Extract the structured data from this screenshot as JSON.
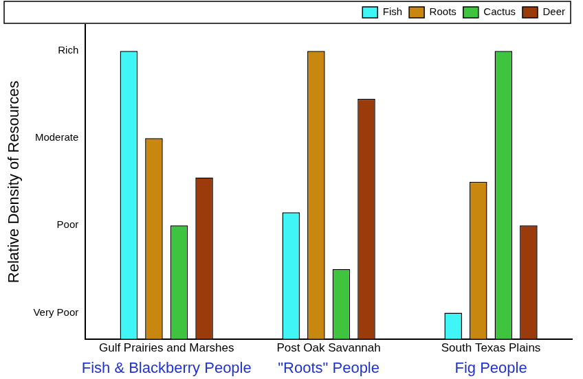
{
  "chart_data": {
    "type": "bar",
    "y_label": "Relative Density of Resources",
    "categories": [
      "Gulf Prairies and Marshes",
      "Post Oak Savannah",
      "South Texas Plains"
    ],
    "annotations": [
      {
        "text": "Fish & Blackberry People",
        "category": "Gulf Prairies and Marshes",
        "color": "#2233cc"
      },
      {
        "text": "\"Roots\" People",
        "category": "Post Oak Savannah",
        "color": "#2233cc"
      },
      {
        "text": "Fig People",
        "category": "South Texas Plains",
        "color": "#2233cc"
      }
    ],
    "series": [
      {
        "name": "Fish",
        "color": "#3ff5f5",
        "values": [
          4.0,
          2.15,
          1.0
        ]
      },
      {
        "name": "Roots",
        "color": "#c8880f",
        "values": [
          3.0,
          4.0,
          2.5
        ]
      },
      {
        "name": "Cactus",
        "color": "#3ec43e",
        "values": [
          2.0,
          1.5,
          4.0
        ]
      },
      {
        "name": "Deer",
        "color": "#9b3a0b",
        "values": [
          2.55,
          3.45,
          2.0
        ]
      }
    ],
    "ylim": [
      0.7,
      4.3
    ],
    "yticks": [
      {
        "value": 1,
        "label": "Very Poor"
      },
      {
        "value": 2,
        "label": "Poor"
      },
      {
        "value": 3,
        "label": "Moderate"
      },
      {
        "value": 4,
        "label": "Rich"
      }
    ],
    "grid": false,
    "legend": "upper right"
  }
}
